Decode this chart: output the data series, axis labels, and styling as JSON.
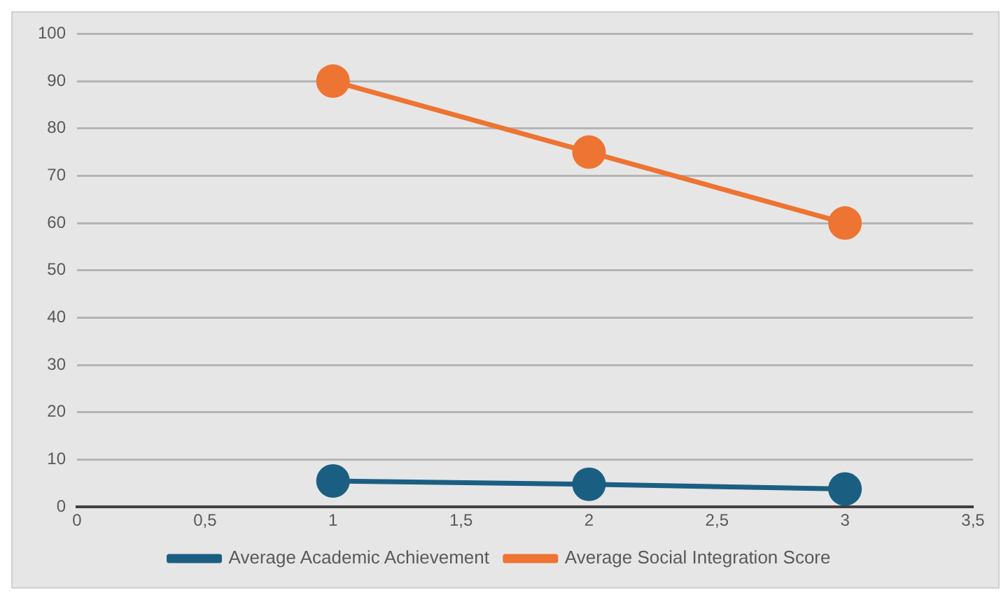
{
  "chart_data": {
    "type": "line",
    "x": [
      1,
      2,
      3
    ],
    "series": [
      {
        "name": "Average Academic Achievement",
        "color": "#1a5f82",
        "values": [
          5.5,
          4.8,
          3.8
        ]
      },
      {
        "name": "Average Social Integration Score",
        "color": "#ed7432",
        "values": [
          90,
          75,
          60
        ]
      }
    ],
    "xlim": [
      0,
      3.5
    ],
    "xticks": [
      0,
      {
        "value": 0.5,
        "label": "0,5"
      },
      1,
      {
        "value": 1.5,
        "label": "1,5"
      },
      2,
      {
        "value": 2.5,
        "label": "2,5"
      },
      3,
      {
        "value": 3.5,
        "label": "3,5"
      }
    ],
    "ylim": [
      0,
      100
    ],
    "yticks": [
      0,
      10,
      20,
      30,
      40,
      50,
      60,
      70,
      80,
      90,
      100
    ],
    "grid": "y",
    "legend": "bottom",
    "marker": "circle",
    "line_style": "solid"
  }
}
